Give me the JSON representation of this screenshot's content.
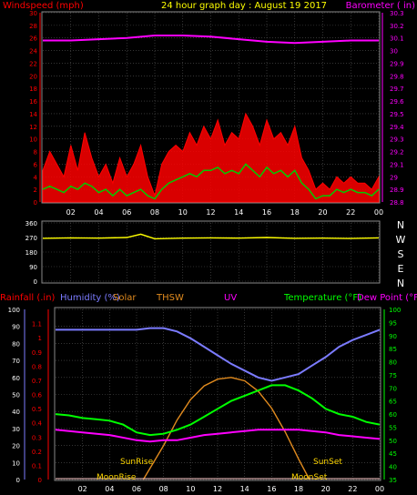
{
  "header": {
    "left_title": "Windspeed (mph)",
    "center_title": "24 hour graph day : August 19 2017",
    "right_title": "Barometer ( in)"
  },
  "colors": {
    "wind_gust": "#ff0000",
    "wind_avg": "#00cc00",
    "barometer": "#ff00ff",
    "wind_direction": "#ffff00",
    "humidity": "#7b7bff",
    "temperature": "#00ff00",
    "dew_point": "#ff00ff",
    "solar": "#e08a1e",
    "rainfall": "#ff0000",
    "grid": "#555555",
    "axis": "#ffffff"
  },
  "chart_data": [
    {
      "type": "line",
      "title": "24 hour graph day : August 19 2017",
      "ylabel": "Windspeed (mph)",
      "y2label": "Barometer ( in)",
      "xlim": [
        0,
        24
      ],
      "ylim": [
        0,
        30
      ],
      "y2lim": [
        28.8,
        30.3
      ],
      "grid": true,
      "x_ticks": [
        "02",
        "04",
        "06",
        "08",
        "10",
        "12",
        "14",
        "16",
        "18",
        "20",
        "22",
        "00"
      ],
      "y_ticks": [
        "0",
        "2",
        "4",
        "6",
        "8",
        "10",
        "12",
        "14",
        "16",
        "18",
        "20",
        "22",
        "24",
        "26",
        "28",
        "30"
      ],
      "y2_ticks": [
        "28.8",
        "28.9",
        "29",
        "29.1",
        "29.2",
        "29.3",
        "29.4",
        "29.5",
        "29.6",
        "29.7",
        "29.8",
        "29.9",
        "30",
        "30.1",
        "30.2",
        "30.3"
      ],
      "series": [
        {
          "name": "Windspeed",
          "role": "gust",
          "x": [
            0,
            0.5,
            1,
            1.5,
            2,
            2.5,
            3,
            3.5,
            4,
            4.5,
            5,
            5.5,
            6,
            6.5,
            7,
            7.5,
            8,
            8.5,
            9,
            9.5,
            10,
            10.5,
            11,
            11.5,
            12,
            12.5,
            13,
            13.5,
            14,
            14.5,
            15,
            15.5,
            16,
            16.5,
            17,
            17.5,
            18,
            18.5,
            19,
            19.5,
            20,
            20.5,
            21,
            21.5,
            22,
            22.5,
            23,
            23.5,
            24
          ],
          "values": [
            5,
            8,
            6,
            4,
            9,
            5,
            11,
            7,
            4,
            6,
            3,
            7,
            4,
            6,
            9,
            4,
            1,
            6,
            8,
            9,
            8,
            11,
            9,
            12,
            10,
            13,
            9,
            11,
            10,
            14,
            12,
            9,
            13,
            10,
            11,
            9,
            12,
            7,
            5,
            2,
            3,
            2,
            4,
            3,
            4,
            3,
            3,
            2,
            4
          ]
        },
        {
          "name": "Windspeed",
          "role": "average",
          "x": [
            0,
            0.5,
            1,
            1.5,
            2,
            2.5,
            3,
            3.5,
            4,
            4.5,
            5,
            5.5,
            6,
            6.5,
            7,
            7.5,
            8,
            8.5,
            9,
            9.5,
            10,
            10.5,
            11,
            11.5,
            12,
            12.5,
            13,
            13.5,
            14,
            14.5,
            15,
            15.5,
            16,
            16.5,
            17,
            17.5,
            18,
            18.5,
            19,
            19.5,
            20,
            20.5,
            21,
            21.5,
            22,
            22.5,
            23,
            23.5,
            24
          ],
          "values": [
            2,
            2.5,
            2,
            1.5,
            2.5,
            2,
            3,
            2.5,
            1.5,
            2,
            1,
            2,
            1,
            1.5,
            2,
            1,
            0.5,
            2,
            3,
            3.5,
            4,
            4.5,
            4,
            5,
            5,
            5.5,
            4.5,
            5,
            4.5,
            6,
            5,
            4,
            5.5,
            4.5,
            5,
            4,
            5,
            3,
            2,
            0.5,
            1,
            1,
            2,
            1.5,
            2,
            1.5,
            1.5,
            1,
            2
          ]
        },
        {
          "name": "Barometer",
          "axis": "right",
          "x": [
            0,
            2,
            4,
            6,
            8,
            10,
            12,
            14,
            16,
            18,
            20,
            22,
            24
          ],
          "values": [
            30.08,
            30.08,
            30.09,
            30.1,
            30.12,
            30.12,
            30.11,
            30.09,
            30.07,
            30.06,
            30.07,
            30.08,
            30.08
          ]
        }
      ]
    },
    {
      "type": "line",
      "ylabel": "Wind direction",
      "xlim": [
        0,
        24
      ],
      "ylim": [
        0,
        360
      ],
      "grid": true,
      "y_ticks": [
        "0",
        "90",
        "180",
        "270",
        "360"
      ],
      "direction_labels": [
        "N",
        "W",
        "S",
        "E",
        "N"
      ],
      "series": [
        {
          "name": "Wind direction",
          "x": [
            0,
            2,
            4,
            6,
            7,
            8,
            10,
            12,
            14,
            16,
            18,
            20,
            22,
            24
          ],
          "values": [
            265,
            268,
            266,
            270,
            290,
            262,
            266,
            268,
            266,
            270,
            265,
            266,
            264,
            268
          ]
        }
      ]
    },
    {
      "type": "line",
      "xlim": [
        0,
        24
      ],
      "ylim": [
        0,
        100
      ],
      "y_mid_lim": [
        0,
        1.2
      ],
      "y2lim": [
        35,
        100
      ],
      "grid": true,
      "x_ticks": [
        "02",
        "04",
        "06",
        "08",
        "10",
        "12",
        "14",
        "16",
        "18",
        "20",
        "22",
        "00"
      ],
      "y_ticks": [
        "0",
        "10",
        "20",
        "30",
        "40",
        "50",
        "60",
        "70",
        "80",
        "90",
        "100"
      ],
      "y_mid_ticks": [
        "0",
        "0.1",
        "0.2",
        "0.3",
        "0.4",
        "0.5",
        "0.6",
        "0.7",
        "0.8",
        "0.9",
        "1",
        "1.1"
      ],
      "y2_ticks": [
        "35",
        "40",
        "45",
        "50",
        "55",
        "60",
        "65",
        "70",
        "75",
        "80",
        "85",
        "90",
        "95",
        "100"
      ],
      "labels": {
        "rainfall": "Rainfall (.in)",
        "humidity": "Humidity (%)",
        "solar": "Solar",
        "thsw": "THSW",
        "uv": "UV",
        "temperature": "Temperature (°F)",
        "dew_point": "Dew Point (°F)"
      },
      "annotations": {
        "sunrise": "SunRise",
        "sunset": "SunSet",
        "moonrise": "MoonRise",
        "moonset": "MoonSet"
      },
      "series": [
        {
          "name": "Humidity",
          "x": [
            0,
            2,
            4,
            6,
            7,
            8,
            9,
            10,
            11,
            12,
            13,
            14,
            15,
            16,
            17,
            18,
            19,
            20,
            21,
            22,
            23,
            24
          ],
          "values": [
            88,
            88,
            88,
            88,
            89,
            89,
            87,
            83,
            78,
            73,
            68,
            64,
            60,
            58,
            60,
            62,
            67,
            72,
            78,
            82,
            85,
            88
          ]
        },
        {
          "name": "Temperature",
          "axis": "right",
          "x": [
            0,
            1,
            2,
            3,
            4,
            5,
            6,
            7,
            8,
            9,
            10,
            11,
            12,
            13,
            14,
            15,
            16,
            17,
            18,
            19,
            20,
            21,
            22,
            23,
            24
          ],
          "values": [
            60,
            59.5,
            58.5,
            58,
            57.5,
            56,
            53,
            52,
            52.5,
            54,
            56,
            59,
            62,
            65,
            67,
            69,
            71,
            71,
            69,
            66,
            62,
            60,
            59,
            57,
            56
          ]
        },
        {
          "name": "Dew Point",
          "axis": "right",
          "x": [
            0,
            2,
            4,
            6,
            7,
            8,
            9,
            10,
            11,
            12,
            13,
            14,
            15,
            16,
            17,
            18,
            19,
            20,
            21,
            22,
            23,
            24
          ],
          "values": [
            54,
            53,
            52,
            50,
            49.5,
            50,
            50,
            51,
            52,
            52.5,
            53,
            53.5,
            54,
            54,
            54,
            54,
            53.5,
            53,
            52,
            51.5,
            51,
            50.5
          ]
        },
        {
          "name": "Solar",
          "x": [
            6.5,
            8,
            9,
            10,
            11,
            12,
            13,
            14,
            15,
            16,
            17,
            18,
            18.8
          ],
          "values": [
            0,
            20,
            35,
            47,
            55,
            59,
            60,
            58,
            52,
            42,
            28,
            12,
            0
          ]
        }
      ]
    }
  ]
}
